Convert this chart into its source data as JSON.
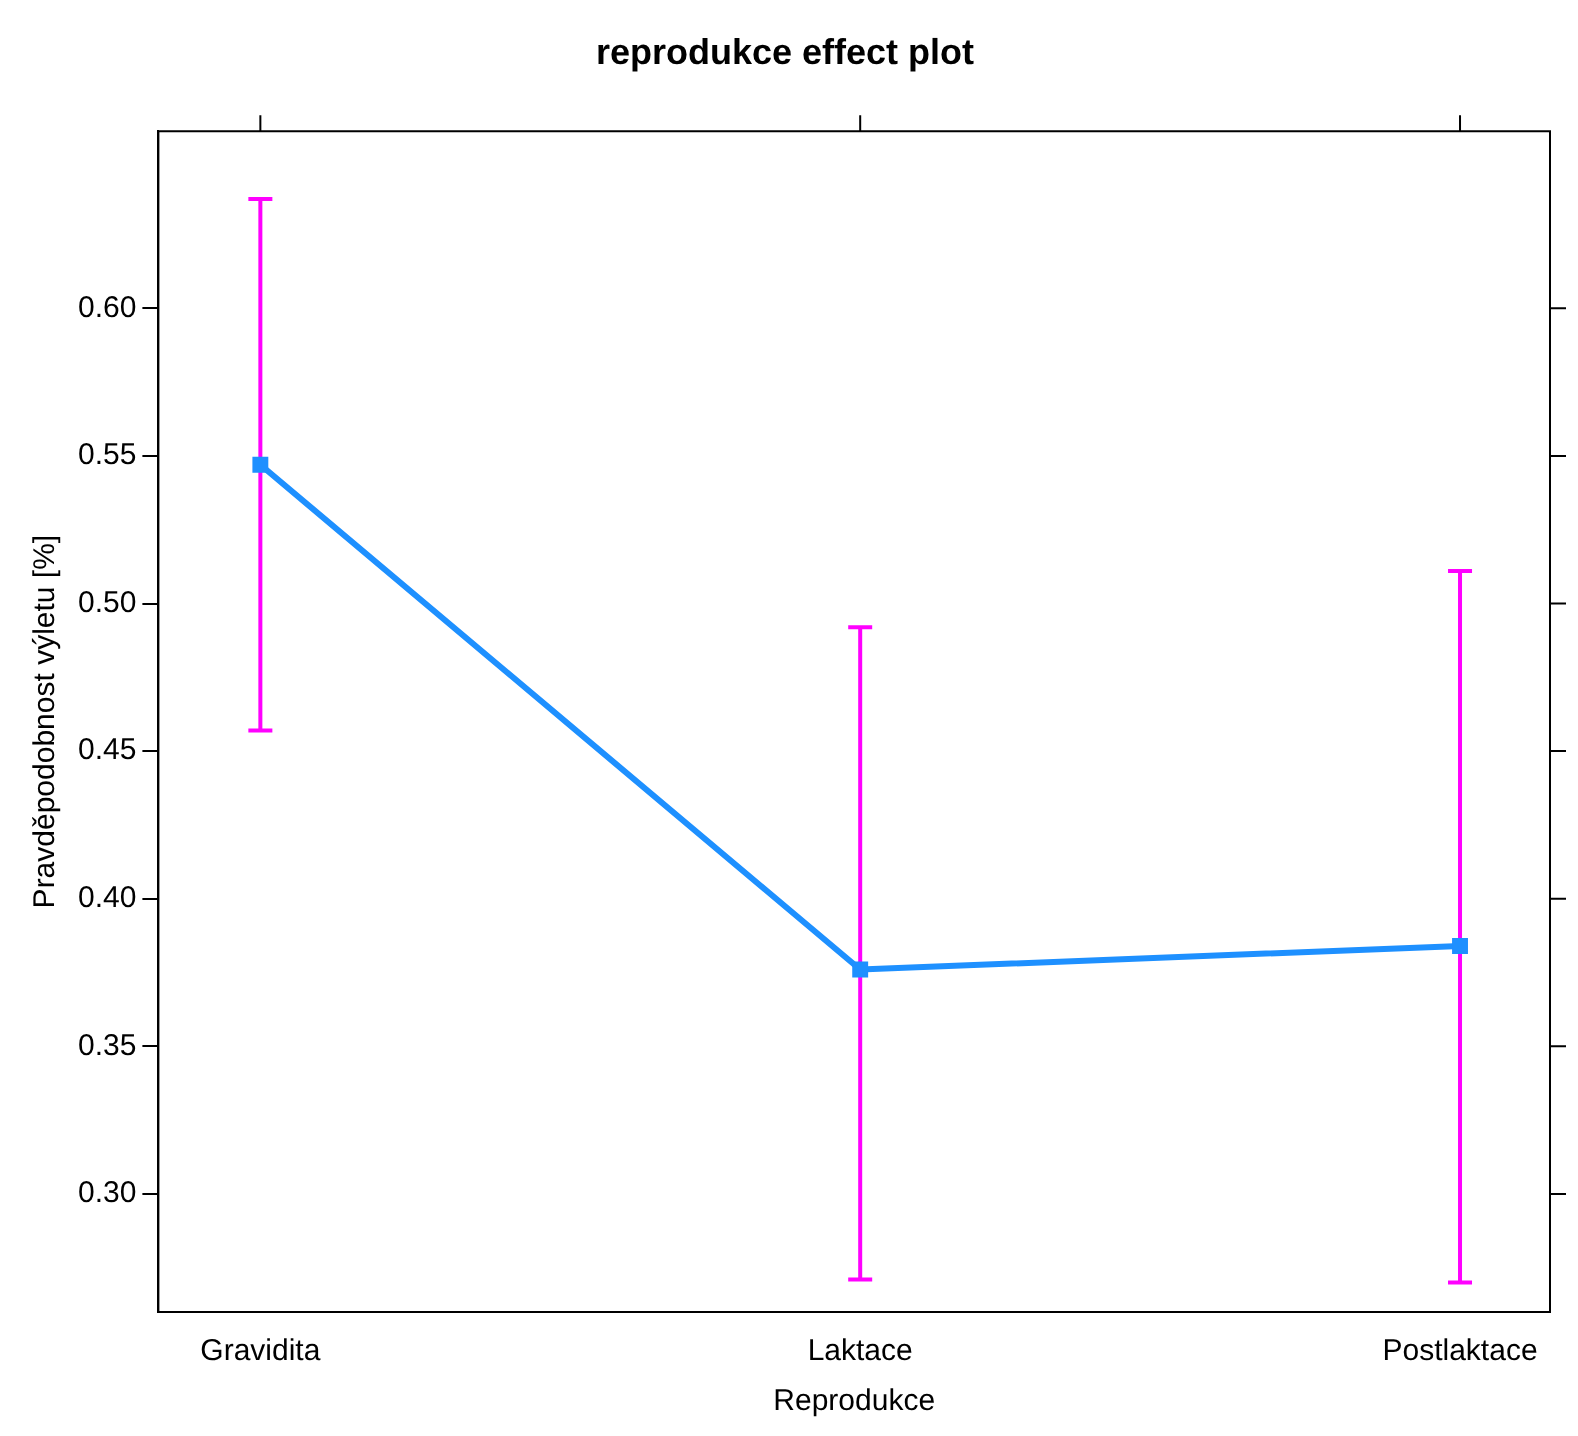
{
  "chart_data": {
    "type": "line",
    "title": "reprodukce effect plot",
    "xlabel": "Reprodukce",
    "ylabel": "Pravděpodobnost výletu [%]",
    "categories": [
      "Gravidita",
      "Laktace",
      "Postlaktace"
    ],
    "series": [
      {
        "color": "#1e90ff",
        "values": [
          0.547,
          0.376,
          0.384
        ],
        "errors": [
          [
            0.457,
            0.637
          ],
          [
            0.271,
            0.492
          ],
          [
            0.27,
            0.511
          ]
        ]
      }
    ],
    "ylim": [
      0.26,
      0.66
    ],
    "yticks": [
      {
        "value": 0.3,
        "label": "0.30"
      },
      0.35,
      {
        "value": 0.4,
        "label": "0.40"
      },
      0.45,
      {
        "value": 0.5,
        "label": "0.50"
      },
      0.55,
      {
        "value": 0.6,
        "label": "0.60"
      }
    ],
    "grid": false,
    "legend": false,
    "marker": "square",
    "line_style": "solid"
  }
}
